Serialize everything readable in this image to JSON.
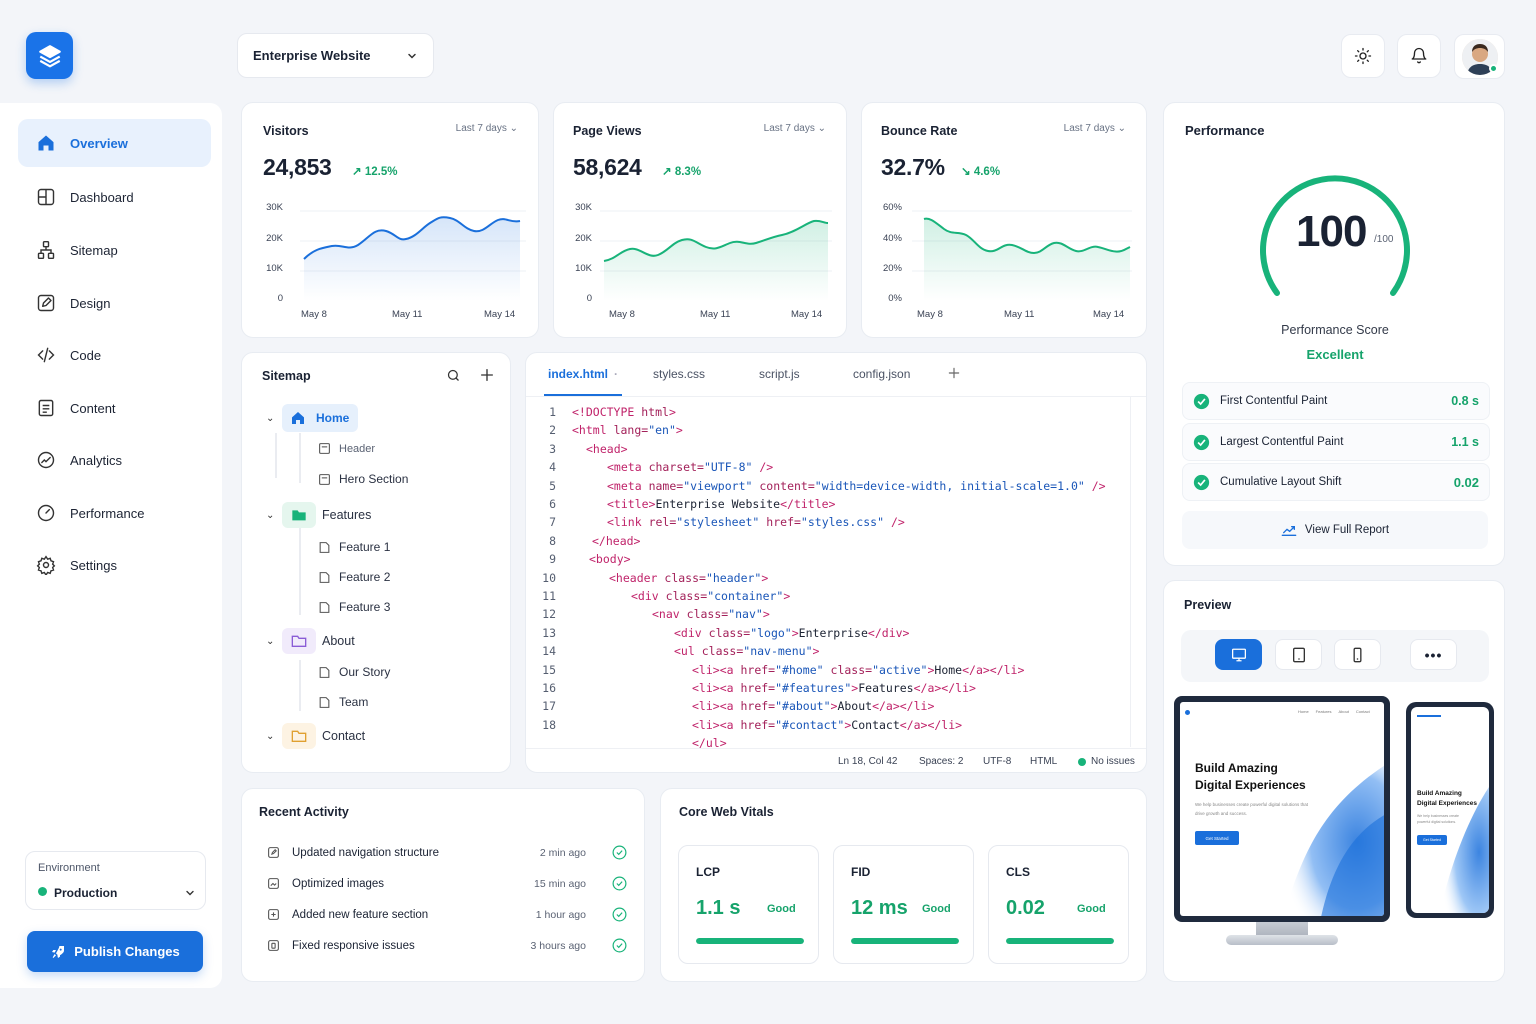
{
  "header": {
    "project_selector": "Enterprise Website",
    "avatar_online": true
  },
  "sidebar": {
    "items": [
      {
        "label": "Overview",
        "active": true
      },
      {
        "label": "Dashboard"
      },
      {
        "label": "Sitemap"
      },
      {
        "label": "Design"
      },
      {
        "label": "Code"
      },
      {
        "label": "Content"
      },
      {
        "label": "Analytics"
      },
      {
        "label": "Performance"
      },
      {
        "label": "Settings"
      }
    ],
    "environment": {
      "label": "Environment",
      "value": "Production",
      "status_color": "#18b37a"
    },
    "publish_label": "Publish Changes"
  },
  "stats": [
    {
      "title": "Visitors",
      "range": "Last 7 days",
      "value": "24,853",
      "delta": "12.5%",
      "trend": "up",
      "color": "#1a6fdb",
      "yticks": [
        "30K",
        "20K",
        "10K",
        "0"
      ],
      "xticks": [
        "May 8",
        "May 11",
        "May 14"
      ]
    },
    {
      "title": "Page Views",
      "range": "Last 7 days",
      "value": "58,624",
      "delta": "8.3%",
      "trend": "up",
      "color": "#18b37a",
      "yticks": [
        "30K",
        "20K",
        "10K",
        "0"
      ],
      "xticks": [
        "May 8",
        "May 11",
        "May 14"
      ]
    },
    {
      "title": "Bounce Rate",
      "range": "Last 7 days",
      "value": "32.7%",
      "delta": "4.6%",
      "trend": "down",
      "color": "#18b37a",
      "yticks": [
        "60%",
        "40%",
        "20%",
        "0%"
      ],
      "xticks": [
        "May 8",
        "May 11",
        "May 14"
      ]
    }
  ],
  "performance": {
    "title": "Performance",
    "score": "100",
    "score_max": "/100",
    "score_fraction": 1.0,
    "score_label": "Performance Score",
    "rating": "Excellent",
    "metrics": [
      {
        "name": "First Contentful Paint",
        "value": "0.8 s"
      },
      {
        "name": "Largest Contentful Paint",
        "value": "1.1 s"
      },
      {
        "name": "Cumulative Layout Shift",
        "value": "0.02"
      }
    ],
    "report_label": "View Full Report"
  },
  "sitemap": {
    "title": "Sitemap",
    "tree": {
      "home": "Home",
      "header": "Header",
      "hero": "Hero Section",
      "features": "Features",
      "feature1": "Feature 1",
      "feature2": "Feature 2",
      "feature3": "Feature 3",
      "about": "About",
      "our_story": "Our Story",
      "team": "Team",
      "contact": "Contact"
    }
  },
  "editor": {
    "tabs": [
      "index.html",
      "styles.css",
      "script.js",
      "config.json"
    ],
    "active_tab": "index.html",
    "status": {
      "position": "Ln 18, Col 42",
      "spaces": "Spaces: 2",
      "encoding": "UTF-8",
      "language": "HTML",
      "issues": "No issues"
    }
  },
  "activity": {
    "title": "Recent Activity",
    "items": [
      {
        "text": "Updated navigation structure",
        "time": "2 min ago"
      },
      {
        "text": "Optimized images",
        "time": "15 min ago"
      },
      {
        "text": "Added new feature section",
        "time": "1 hour ago"
      },
      {
        "text": "Fixed responsive issues",
        "time": "3 hours ago"
      }
    ]
  },
  "web_vitals": {
    "title": "Core Web Vitals",
    "items": [
      {
        "name": "LCP",
        "value": "1.1 s",
        "status": "Good"
      },
      {
        "name": "FID",
        "value": "12 ms",
        "status": "Good"
      },
      {
        "name": "CLS",
        "value": "0.02",
        "status": "Good"
      }
    ]
  },
  "preview": {
    "title": "Preview",
    "active_device": "desktop",
    "hero_title_1": "Build Amazing",
    "hero_title_2": "Digital Experiences",
    "hero_sub": "We help businesses create powerful digital solutions that drive growth and success.",
    "cta": "Get Started",
    "mobile_title_1": "Build Amazing",
    "mobile_title_2": "Digital Experiences",
    "mobile_sub": "We help businesses create powerful digital solutions.",
    "nav_items": [
      "Home",
      "Features",
      "About",
      "Contact"
    ]
  },
  "colors": {
    "accent": "#1a6fdb",
    "success": "#18b37a"
  }
}
